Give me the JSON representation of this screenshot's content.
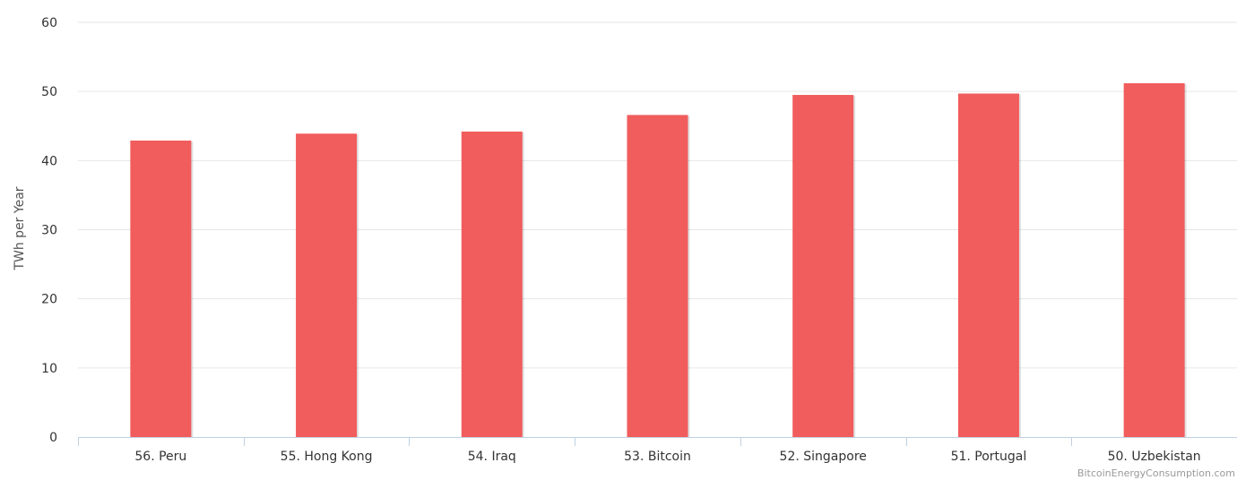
{
  "chart_data": {
    "type": "bar",
    "categories": [
      "56. Peru",
      "55. Hong Kong",
      "54. Iraq",
      "53. Bitcoin",
      "52. Singapore",
      "51. Portugal",
      "50. Uzbekistan"
    ],
    "values": [
      42.9,
      43.9,
      44.2,
      46.6,
      49.5,
      49.7,
      51.2
    ],
    "ylabel": "TWh per Year",
    "xlabel": "",
    "ylim": [
      0,
      60
    ],
    "yticks": [
      0,
      10,
      20,
      30,
      40,
      50,
      60
    ],
    "grid": true,
    "bar_color": "#f15c5c",
    "credit": "BitcoinEnergyConsumption.com"
  }
}
